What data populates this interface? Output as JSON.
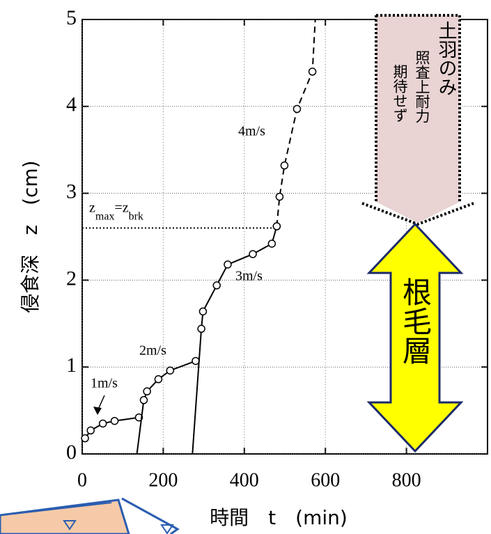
{
  "chart_data": {
    "type": "line",
    "xlabel": "時間　t　(min)",
    "ylabel": "侵食深　z　(cm)",
    "xlim": [
      0,
      1000
    ],
    "xticks": [
      0,
      200,
      400,
      600,
      800
    ],
    "ylim": [
      0,
      5
    ],
    "yticks": [
      0,
      1,
      2,
      3,
      4,
      5
    ],
    "grid": true,
    "series": [
      {
        "name": "1m/s",
        "color": "#000000",
        "dashed": false,
        "x": [
          7,
          21,
          51,
          80,
          140
        ],
        "values": [
          0.18,
          0.27,
          0.35,
          0.38,
          0.42
        ]
      },
      {
        "name": "2m/s",
        "color": "#000000",
        "dashed": false,
        "x": [
          135,
          152,
          160,
          188,
          217,
          280
        ],
        "values": [
          0,
          0.62,
          0.72,
          0.86,
          0.96,
          1.07
        ]
      },
      {
        "name": "3m/s",
        "color": "#000000",
        "dashed": false,
        "x": [
          272,
          294,
          298,
          332,
          359,
          421,
          468,
          480
        ],
        "values": [
          0,
          1.44,
          1.64,
          1.94,
          2.18,
          2.3,
          2.42,
          2.62
        ]
      },
      {
        "name": "4m/s",
        "color": "#000000",
        "dashed": true,
        "x": [
          480,
          487,
          499,
          530,
          568,
          575
        ],
        "values": [
          2.62,
          2.96,
          3.32,
          3.97,
          4.4,
          5
        ]
      }
    ],
    "threshold": {
      "label_parts": [
        "z",
        "max",
        "=z",
        "brk"
      ],
      "value": 2.6
    },
    "overlay": {
      "box_columns": [
        "土羽のみ",
        "照査上耐力",
        "期待せず"
      ],
      "arrow_label": "根毛層"
    }
  }
}
